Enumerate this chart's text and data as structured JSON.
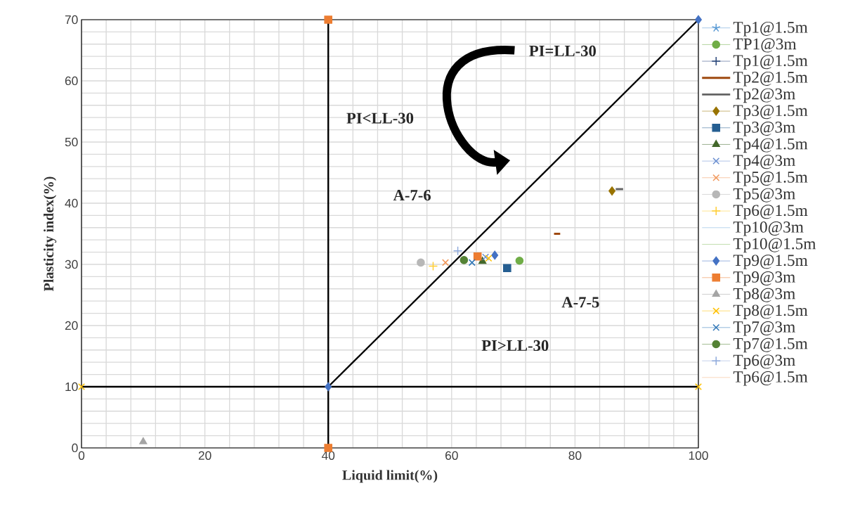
{
  "chart_data": {
    "type": "scatter",
    "xlabel": "Liquid limit(%)",
    "ylabel": "Plasticity index(%)",
    "xlim": [
      0,
      100
    ],
    "ylim": [
      0,
      70
    ],
    "xticks": [
      0,
      20,
      40,
      60,
      80,
      100
    ],
    "yticks": [
      0,
      10,
      20,
      30,
      40,
      50,
      60,
      70
    ],
    "grid": true,
    "legend": "right",
    "series": [
      {
        "name": "Tp1@1.5m",
        "color": "#5b9bd5",
        "marker": "star"
      },
      {
        "name": "TP1@3m",
        "color": "#70ad47",
        "marker": "circle",
        "x": [
          71
        ],
        "values": [
          30.6
        ]
      },
      {
        "name": "Tp1@1.5m",
        "color": "#264478",
        "marker": "plus"
      },
      {
        "name": "Tp2@1.5m",
        "type": "line",
        "color": "#9e480e",
        "marker": "none",
        "x": [
          76.6,
          77.6
        ],
        "values": [
          35,
          35
        ]
      },
      {
        "name": "Tp2@3m",
        "type": "line",
        "color": "#636363",
        "marker": "none",
        "x": [
          86.6,
          87.8
        ],
        "values": [
          42.3,
          42.3
        ]
      },
      {
        "name": "Tp3@1.5m",
        "color": "#997300",
        "marker": "diamond",
        "x": [
          86
        ],
        "values": [
          42
        ]
      },
      {
        "name": "Tp3@3m",
        "color": "#255e91",
        "marker": "square",
        "x": [
          69
        ],
        "values": [
          29.4
        ]
      },
      {
        "name": "Tp4@1.5m",
        "color": "#43682b",
        "marker": "triangle",
        "x": [
          65
        ],
        "values": [
          30.5
        ]
      },
      {
        "name": "Tp4@3m",
        "color": "#698ed0",
        "marker": "cross",
        "x": [
          65.5
        ],
        "values": [
          31.2
        ]
      },
      {
        "name": "Tp5@1.5m",
        "color": "#f1975a",
        "marker": "cross",
        "x": [
          59
        ],
        "values": [
          30.3
        ]
      },
      {
        "name": "Tp5@3m",
        "color": "#b7b7b7",
        "marker": "circle",
        "x": [
          55
        ],
        "values": [
          30.3
        ]
      },
      {
        "name": "Tp6@1.5m",
        "color": "#ffcd33",
        "marker": "plus",
        "x": [
          57
        ],
        "values": [
          29.7
        ]
      },
      {
        "name": "Tp10@3m",
        "color": "#7cafdd",
        "marker": "none"
      },
      {
        "name": "Tp10@1.5m",
        "color": "#8cc168",
        "marker": "none"
      },
      {
        "name": "Tp9@1.5m",
        "color": "#4472c4",
        "marker": "diamond",
        "x": [
          67
        ],
        "values": [
          31.5
        ]
      },
      {
        "name": "Tp9@3m",
        "color": "#ed7d31",
        "marker": "square",
        "x": [
          64.2
        ],
        "values": [
          31.3
        ]
      },
      {
        "name": "Tp8@3m",
        "color": "#a5a5a5",
        "marker": "triangle",
        "x": [
          10
        ],
        "values": [
          1
        ]
      },
      {
        "name": "Tp8@1.5m",
        "color": "#ffc000",
        "marker": "cross",
        "x": [
          66
        ],
        "values": [
          31
        ]
      },
      {
        "name": "Tp7@3m",
        "color": "#2e75b6",
        "marker": "cross",
        "x": [
          63.3
        ],
        "values": [
          30.3
        ]
      },
      {
        "name": "Tp7@1.5m",
        "color": "#548235",
        "marker": "circle",
        "x": [
          62
        ],
        "values": [
          30.7
        ]
      },
      {
        "name": "Tp6@3m",
        "color": "#8faadc",
        "marker": "plus",
        "x": [
          61
        ],
        "values": [
          32.2
        ]
      },
      {
        "name": "Tp6@1.5m",
        "color": "#f4b183",
        "marker": "none"
      },
      {
        "type": "line",
        "color": "#000000",
        "marker": "none",
        "x": [
          40,
          100
        ],
        "values": [
          10,
          70
        ]
      },
      {
        "color": "#4472c4",
        "marker": "diamond",
        "x": [
          40,
          100
        ],
        "values": [
          10,
          70
        ]
      },
      {
        "color": "#ed7d31",
        "marker": "square",
        "x": [
          40,
          40
        ],
        "values": [
          0,
          70
        ]
      },
      {
        "color": "#ffc000",
        "marker": "cross",
        "x": [
          0,
          100
        ],
        "values": [
          10,
          10
        ]
      }
    ],
    "ref_lines": [
      {
        "axis": "x",
        "value": 40,
        "color": "#000000"
      },
      {
        "axis": "y",
        "value": 10,
        "color": "#000000"
      }
    ],
    "annotations": [
      "PI=LL-30",
      "PI<LL-30",
      "A-7-6",
      "A-7-5",
      "PI>LL-30"
    ]
  }
}
